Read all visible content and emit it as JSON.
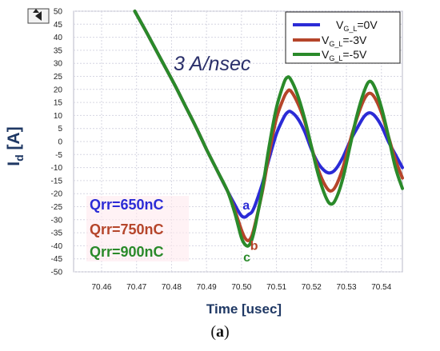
{
  "chart_data": {
    "type": "line",
    "title": "",
    "xlabel": "Time [usec]",
    "ylabel": "I",
    "ylabel_sub": "d",
    "ylabel_unit": " [A]",
    "xlim": [
      70.452,
      70.546
    ],
    "ylim": [
      -50,
      50
    ],
    "x_ticks": [
      "70.46",
      "70.47",
      "70.48",
      "70.49",
      "70.50",
      "70.51",
      "70.52",
      "70.53",
      "70.54"
    ],
    "y_ticks": [
      "50",
      "45",
      "40",
      "35",
      "30",
      "25",
      "20",
      "15",
      "10",
      "5",
      "0",
      "-5",
      "-10",
      "-15",
      "-20",
      "-25",
      "-30",
      "-35",
      "-40",
      "-45",
      "-50"
    ],
    "grid": true,
    "legend_position": "top-right",
    "series": [
      {
        "name": "V_G_L=0V",
        "legend_main": "V",
        "legend_sub": "G_L",
        "legend_tail": "=0V",
        "color": "#2b2bd6",
        "x": [
          70.4695,
          70.472,
          70.475,
          70.478,
          70.481,
          70.484,
          70.487,
          70.49,
          70.493,
          70.496,
          70.498,
          70.499,
          70.5,
          70.501,
          70.502,
          70.503,
          70.504,
          70.506,
          70.508,
          70.51,
          70.512,
          70.513,
          70.514,
          70.516,
          70.518,
          70.52,
          70.522,
          70.524,
          70.5255,
          70.527,
          70.529,
          70.531,
          70.533,
          70.535,
          70.5365,
          70.538,
          70.54,
          70.542,
          70.544,
          70.546
        ],
        "y": [
          50,
          44,
          36.5,
          29,
          21.5,
          13.5,
          5.5,
          -3,
          -11,
          -19,
          -24,
          -26.5,
          -28.5,
          -29,
          -28,
          -27,
          -24,
          -16,
          -6,
          3,
          9,
          11,
          11.5,
          9,
          4,
          -3,
          -8.5,
          -11.5,
          -12,
          -10.5,
          -6,
          0,
          5,
          9.5,
          11,
          10,
          6,
          0,
          -5,
          -10
        ]
      },
      {
        "name": "V_G_L=-3V",
        "legend_main": "V",
        "legend_sub": "G_L",
        "legend_tail": "=-3V",
        "color": "#b5452a",
        "x": [
          70.4695,
          70.472,
          70.475,
          70.478,
          70.481,
          70.484,
          70.487,
          70.49,
          70.493,
          70.496,
          70.498,
          70.499,
          70.5,
          70.501,
          70.502,
          70.503,
          70.504,
          70.506,
          70.508,
          70.51,
          70.512,
          70.513,
          70.514,
          70.516,
          70.518,
          70.52,
          70.522,
          70.524,
          70.5255,
          70.527,
          70.529,
          70.531,
          70.533,
          70.535,
          70.5365,
          70.538,
          70.54,
          70.542,
          70.544,
          70.546
        ],
        "y": [
          50,
          44,
          36.5,
          29,
          21.5,
          13.5,
          5.5,
          -3,
          -11,
          -19,
          -26,
          -30,
          -34,
          -37,
          -38,
          -36,
          -31,
          -19,
          -4,
          9,
          16.5,
          19,
          19.5,
          15,
          8,
          -2,
          -11,
          -17,
          -19,
          -17,
          -10,
          0,
          9,
          16,
          18.5,
          17,
          11,
          2,
          -7,
          -14
        ]
      },
      {
        "name": "V_G_L=-5V",
        "legend_main": "V",
        "legend_sub": "G_L",
        "legend_tail": "=-5V",
        "color": "#2a8a2a",
        "x": [
          70.4695,
          70.472,
          70.475,
          70.478,
          70.481,
          70.484,
          70.487,
          70.49,
          70.493,
          70.496,
          70.498,
          70.499,
          70.5,
          70.501,
          70.502,
          70.503,
          70.504,
          70.506,
          70.508,
          70.51,
          70.512,
          70.513,
          70.514,
          70.516,
          70.518,
          70.52,
          70.522,
          70.524,
          70.5255,
          70.527,
          70.529,
          70.531,
          70.533,
          70.535,
          70.5365,
          70.538,
          70.54,
          70.542,
          70.544,
          70.546
        ],
        "y": [
          50,
          44,
          36.5,
          29,
          21.5,
          13.5,
          5.5,
          -3,
          -11,
          -19,
          -27,
          -32,
          -37,
          -39.5,
          -40,
          -37.5,
          -32,
          -18,
          -1,
          13,
          22,
          24.5,
          24,
          18,
          9,
          -2,
          -13,
          -21,
          -24,
          -22,
          -14,
          -2,
          10,
          19,
          23,
          21,
          13,
          2,
          -10,
          -18
        ]
      }
    ],
    "annotations": {
      "rate": "3 A/nsec",
      "qrr": [
        {
          "label": "Qrr=650nC",
          "color": "#2b2bd6"
        },
        {
          "label": "Qrr=750nC",
          "color": "#b5452a"
        },
        {
          "label": "Qrr=900nC",
          "color": "#2a8a2a"
        }
      ],
      "points": [
        {
          "label": "a",
          "x": 70.5003,
          "y": -26
        },
        {
          "label": "b",
          "x": 70.5025,
          "y": -41.5
        },
        {
          "label": "c",
          "x": 70.5005,
          "y": -46
        }
      ]
    }
  },
  "caption": {
    "open": "(",
    "letter": "a",
    "close": ")"
  }
}
